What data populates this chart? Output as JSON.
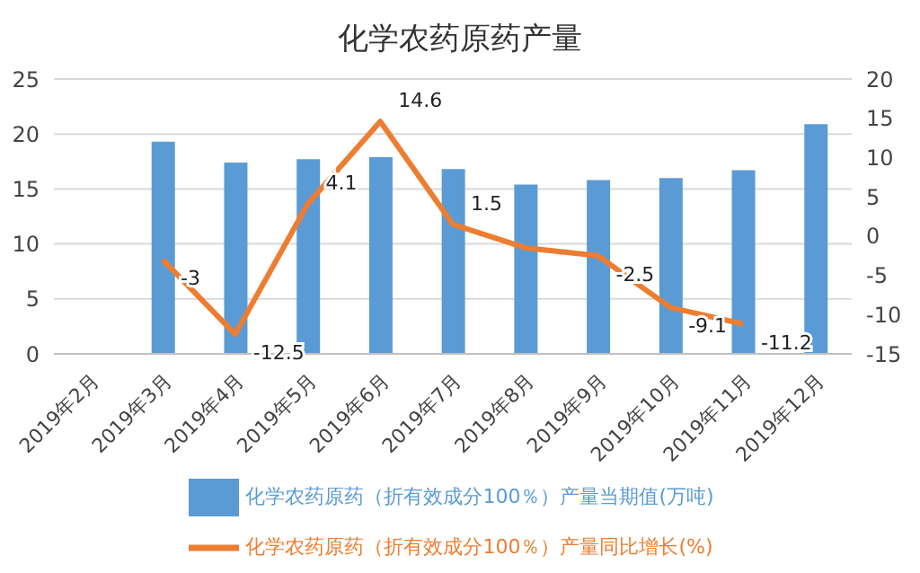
{
  "chart_data": {
    "type": "bar",
    "title": "化学农药原药产量",
    "categories": [
      "2019年2月",
      "2019年3月",
      "2019年4月",
      "2019年5月",
      "2019年6月",
      "2019年7月",
      "2019年8月",
      "2019年9月",
      "2019年10月",
      "2019年11月",
      "2019年12月"
    ],
    "series": [
      {
        "name": "化学农药原药（折有效成分100％）产量当期值(万吨)",
        "color": "#5b9bd5",
        "values": [
          null,
          19.3,
          17.4,
          17.7,
          17.9,
          16.8,
          15.4,
          15.8,
          16.0,
          16.7,
          20.9
        ]
      },
      {
        "name": "化学农药原药（折有效成分100％）产量同比增长(%)",
        "type": "line",
        "axis": "y2",
        "color": "#ed7d31",
        "values": [
          null,
          -3,
          -12.5,
          4.1,
          14.6,
          1.5,
          -1.5,
          -2.5,
          -9.1,
          -11.2,
          null
        ],
        "value_labels": [
          null,
          "-3",
          "-12.5",
          "4.1",
          "14.6",
          "1.5",
          null,
          "-2.5",
          "-9.1",
          "-11.2",
          null
        ]
      }
    ],
    "ylim": [
      0,
      25
    ],
    "yticks": [
      0,
      5,
      10,
      15,
      20,
      25
    ],
    "y2lim": [
      -15,
      20
    ],
    "y2ticks": [
      -15,
      -10,
      -5,
      0,
      5,
      10,
      15,
      20
    ],
    "grid": "y",
    "legend": "bottom",
    "marker": "none"
  }
}
